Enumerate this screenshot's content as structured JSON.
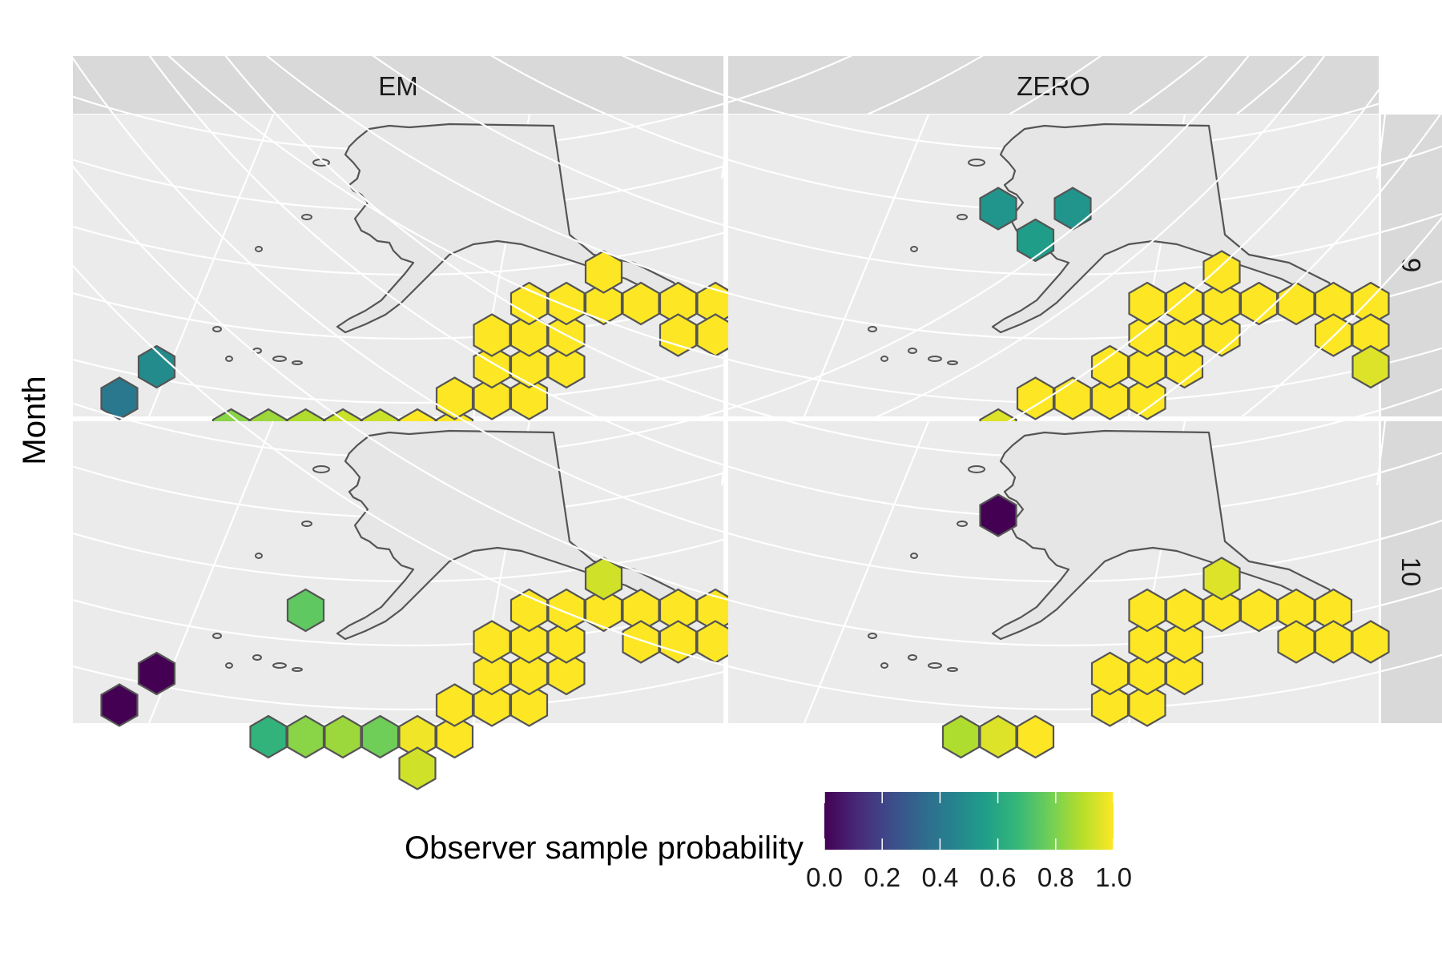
{
  "chart_data": {
    "type": "heatmap",
    "facet_columns": [
      "EM",
      "ZERO"
    ],
    "facet_rows": [
      "9",
      "10"
    ],
    "y_axis_title": "Month",
    "legend": {
      "title": "Observer sample probability",
      "ticks": [
        "0.0",
        "0.2",
        "0.4",
        "0.6",
        "0.8",
        "1.0"
      ],
      "range": [
        0,
        1
      ],
      "palette": [
        "#440154",
        "#482878",
        "#3e4a89",
        "#31688e",
        "#26828e",
        "#1f9e89",
        "#35b779",
        "#6ece58",
        "#b5de2b",
        "#fde725"
      ],
      "placement": "bottom"
    },
    "panels": [
      {
        "column": "EM",
        "row": "9",
        "cells": [
          {
            "col": 1,
            "row": 4,
            "value": 0.48
          },
          {
            "col": 0,
            "row": 5,
            "value": 0.4
          },
          {
            "col": 3,
            "row": 6,
            "value": 0.82
          },
          {
            "col": 4,
            "row": 6,
            "value": 0.85
          },
          {
            "col": 5,
            "row": 6,
            "value": 0.88
          },
          {
            "col": 6,
            "row": 6,
            "value": 0.92
          },
          {
            "col": 7,
            "row": 6,
            "value": 0.92
          },
          {
            "col": 8,
            "row": 6,
            "value": 1.0
          },
          {
            "col": 9,
            "row": 6,
            "value": 1.0
          },
          {
            "col": 8,
            "row": 7,
            "value": 0.93
          },
          {
            "col": 9,
            "row": 5,
            "value": 1.0
          },
          {
            "col": 10,
            "row": 5,
            "value": 1.0
          },
          {
            "col": 11,
            "row": 5,
            "value": 1.0
          },
          {
            "col": 10,
            "row": 4,
            "value": 1.0
          },
          {
            "col": 11,
            "row": 4,
            "value": 1.0
          },
          {
            "col": 12,
            "row": 4,
            "value": 1.0
          },
          {
            "col": 10,
            "row": 3,
            "value": 1.0
          },
          {
            "col": 11,
            "row": 3,
            "value": 1.0
          },
          {
            "col": 12,
            "row": 3,
            "value": 1.0
          },
          {
            "col": 11,
            "row": 2,
            "value": 1.0
          },
          {
            "col": 12,
            "row": 2,
            "value": 1.0
          },
          {
            "col": 13,
            "row": 2,
            "value": 1.0
          },
          {
            "col": 14,
            "row": 2,
            "value": 1.0
          },
          {
            "col": 15,
            "row": 2,
            "value": 1.0
          },
          {
            "col": 16,
            "row": 2,
            "value": 1.0
          },
          {
            "col": 13,
            "row": 1,
            "value": 1.0
          },
          {
            "col": 15,
            "row": 3,
            "value": 1.0
          },
          {
            "col": 16,
            "row": 3,
            "value": 1.0
          },
          {
            "col": 17,
            "row": 3,
            "value": 0.95
          }
        ]
      },
      {
        "column": "ZERO",
        "row": "9",
        "cells": [
          {
            "col": 6,
            "row": -1,
            "value": 0.52
          },
          {
            "col": 8,
            "row": -1,
            "value": 0.52
          },
          {
            "col": 7,
            "row": 0,
            "value": 0.55
          },
          {
            "col": 6,
            "row": 6,
            "value": 0.95
          },
          {
            "col": 7,
            "row": 5,
            "value": 1.0
          },
          {
            "col": 8,
            "row": 5,
            "value": 1.0
          },
          {
            "col": 9,
            "row": 5,
            "value": 1.0
          },
          {
            "col": 10,
            "row": 5,
            "value": 1.0
          },
          {
            "col": 9,
            "row": 4,
            "value": 1.0
          },
          {
            "col": 10,
            "row": 4,
            "value": 1.0
          },
          {
            "col": 11,
            "row": 4,
            "value": 1.0
          },
          {
            "col": 10,
            "row": 3,
            "value": 1.0
          },
          {
            "col": 11,
            "row": 3,
            "value": 1.0
          },
          {
            "col": 12,
            "row": 3,
            "value": 1.0
          },
          {
            "col": 10,
            "row": 2,
            "value": 1.0
          },
          {
            "col": 11,
            "row": 2,
            "value": 1.0
          },
          {
            "col": 12,
            "row": 2,
            "value": 1.0
          },
          {
            "col": 13,
            "row": 2,
            "value": 1.0
          },
          {
            "col": 14,
            "row": 2,
            "value": 1.0
          },
          {
            "col": 15,
            "row": 2,
            "value": 1.0
          },
          {
            "col": 16,
            "row": 2,
            "value": 1.0
          },
          {
            "col": 12,
            "row": 1,
            "value": 1.0
          },
          {
            "col": 15,
            "row": 3,
            "value": 1.0
          },
          {
            "col": 16,
            "row": 3,
            "value": 1.0
          },
          {
            "col": 16,
            "row": 4,
            "value": 0.95
          }
        ]
      },
      {
        "column": "EM",
        "row": "10",
        "cells": [
          {
            "col": 1,
            "row": 4,
            "value": 0.0
          },
          {
            "col": 0,
            "row": 5,
            "value": 0.0
          },
          {
            "col": 5,
            "row": 2,
            "value": 0.75
          },
          {
            "col": 4,
            "row": 6,
            "value": 0.65
          },
          {
            "col": 5,
            "row": 6,
            "value": 0.82
          },
          {
            "col": 6,
            "row": 6,
            "value": 0.85
          },
          {
            "col": 7,
            "row": 6,
            "value": 0.78
          },
          {
            "col": 8,
            "row": 6,
            "value": 0.98
          },
          {
            "col": 9,
            "row": 6,
            "value": 1.0
          },
          {
            "col": 8,
            "row": 7,
            "value": 0.93
          },
          {
            "col": 9,
            "row": 5,
            "value": 1.0
          },
          {
            "col": 10,
            "row": 5,
            "value": 1.0
          },
          {
            "col": 11,
            "row": 5,
            "value": 1.0
          },
          {
            "col": 10,
            "row": 4,
            "value": 1.0
          },
          {
            "col": 11,
            "row": 4,
            "value": 1.0
          },
          {
            "col": 12,
            "row": 4,
            "value": 1.0
          },
          {
            "col": 10,
            "row": 3,
            "value": 1.0
          },
          {
            "col": 11,
            "row": 3,
            "value": 1.0
          },
          {
            "col": 12,
            "row": 3,
            "value": 1.0
          },
          {
            "col": 11,
            "row": 2,
            "value": 1.0
          },
          {
            "col": 12,
            "row": 2,
            "value": 1.0
          },
          {
            "col": 13,
            "row": 2,
            "value": 1.0
          },
          {
            "col": 14,
            "row": 2,
            "value": 1.0
          },
          {
            "col": 15,
            "row": 2,
            "value": 1.0
          },
          {
            "col": 16,
            "row": 2,
            "value": 1.0
          },
          {
            "col": 13,
            "row": 1,
            "value": 0.93
          },
          {
            "col": 14,
            "row": 3,
            "value": 1.0
          },
          {
            "col": 15,
            "row": 3,
            "value": 1.0
          },
          {
            "col": 16,
            "row": 3,
            "value": 1.0
          },
          {
            "col": 17,
            "row": 3,
            "value": 1.0
          }
        ]
      },
      {
        "column": "ZERO",
        "row": "10",
        "cells": [
          {
            "col": 6,
            "row": -1,
            "value": 0.0
          },
          {
            "col": 5,
            "row": 6,
            "value": 0.88
          },
          {
            "col": 6,
            "row": 6,
            "value": 0.95
          },
          {
            "col": 7,
            "row": 6,
            "value": 1.0
          },
          {
            "col": 9,
            "row": 5,
            "value": 1.0
          },
          {
            "col": 10,
            "row": 5,
            "value": 1.0
          },
          {
            "col": 9,
            "row": 4,
            "value": 1.0
          },
          {
            "col": 10,
            "row": 4,
            "value": 1.0
          },
          {
            "col": 11,
            "row": 4,
            "value": 1.0
          },
          {
            "col": 10,
            "row": 3,
            "value": 1.0
          },
          {
            "col": 11,
            "row": 3,
            "value": 1.0
          },
          {
            "col": 10,
            "row": 2,
            "value": 1.0
          },
          {
            "col": 11,
            "row": 2,
            "value": 1.0
          },
          {
            "col": 12,
            "row": 2,
            "value": 1.0
          },
          {
            "col": 12,
            "row": 1,
            "value": 0.95
          },
          {
            "col": 13,
            "row": 2,
            "value": 1.0
          },
          {
            "col": 14,
            "row": 2,
            "value": 1.0
          },
          {
            "col": 15,
            "row": 2,
            "value": 1.0
          },
          {
            "col": 14,
            "row": 3,
            "value": 1.0
          },
          {
            "col": 15,
            "row": 3,
            "value": 1.0
          },
          {
            "col": 16,
            "row": 3,
            "value": 1.0
          }
        ]
      }
    ]
  }
}
